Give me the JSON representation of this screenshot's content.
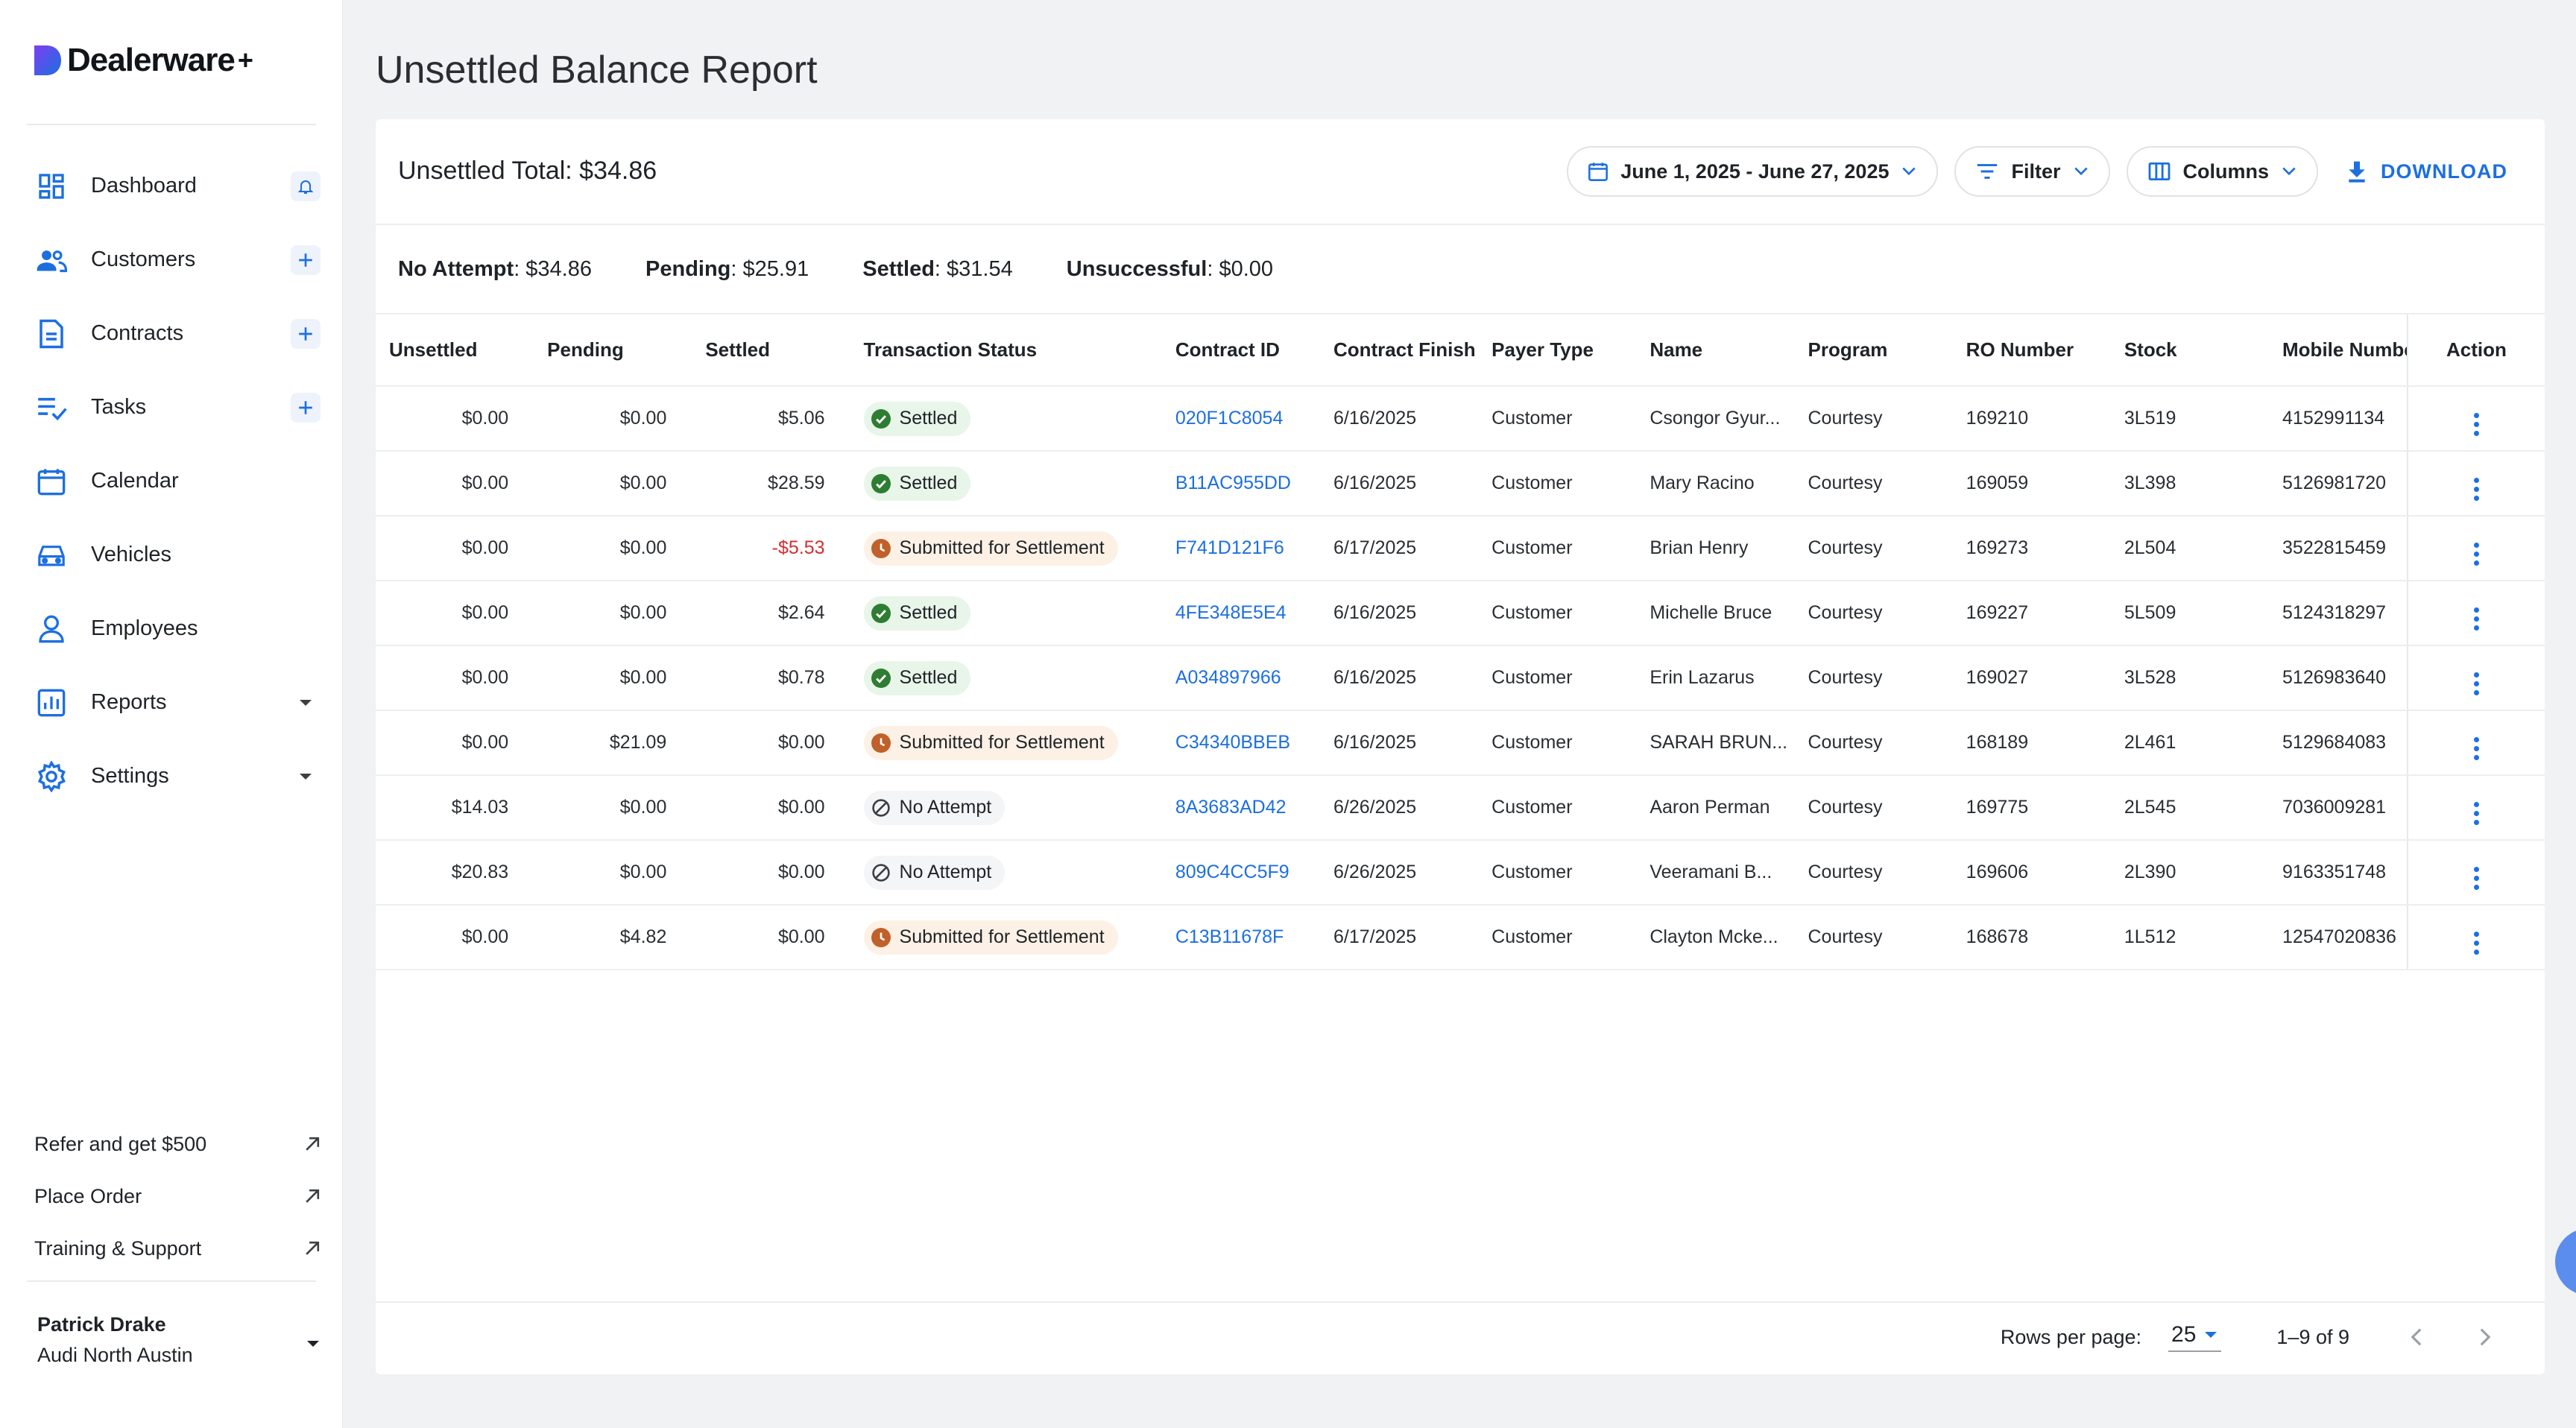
{
  "brand": {
    "name": "Dealerware",
    "plus": "+"
  },
  "sidebar": {
    "items": [
      {
        "label": "Dashboard",
        "icon": "dashboard-icon",
        "trail": "bell"
      },
      {
        "label": "Customers",
        "icon": "customers-icon",
        "trail": "plus"
      },
      {
        "label": "Contracts",
        "icon": "contracts-icon",
        "trail": "plus"
      },
      {
        "label": "Tasks",
        "icon": "tasks-icon",
        "trail": "plus"
      },
      {
        "label": "Calendar",
        "icon": "calendar-icon",
        "trail": ""
      },
      {
        "label": "Vehicles",
        "icon": "vehicle-icon",
        "trail": ""
      },
      {
        "label": "Employees",
        "icon": "employee-icon",
        "trail": ""
      },
      {
        "label": "Reports",
        "icon": "reports-icon",
        "trail": "caret"
      },
      {
        "label": "Settings",
        "icon": "settings-icon",
        "trail": "caret"
      }
    ],
    "links": [
      {
        "label": "Refer and get $500"
      },
      {
        "label": "Place Order"
      },
      {
        "label": "Training & Support"
      }
    ],
    "user": {
      "name": "Patrick Drake",
      "org": "Audi North Austin"
    }
  },
  "page": {
    "title": "Unsettled Balance Report"
  },
  "header": {
    "total": "Unsettled Total: $34.86",
    "date_range": "June 1, 2025 - June 27, 2025",
    "filter": "Filter",
    "columns": "Columns",
    "download": "DOWNLOAD"
  },
  "summary": {
    "no_attempt_label": "No Attempt",
    "no_attempt_value": ": $34.86",
    "pending_label": "Pending",
    "pending_value": ": $25.91",
    "settled_label": "Settled",
    "settled_value": ": $31.54",
    "unsuccessful_label": "Unsuccessful",
    "unsuccessful_value": ": $0.00"
  },
  "table": {
    "headers": [
      "Unsettled",
      "Pending",
      "Settled",
      "Transaction Status",
      "Contract ID",
      "Contract Finish",
      "Payer Type",
      "Name",
      "Program",
      "RO Number",
      "Stock",
      "Mobile Number",
      "Action"
    ],
    "rows": [
      {
        "unsettled": "$0.00",
        "pending": "$0.00",
        "settled": "$5.06",
        "status": "Settled",
        "contract_id": "020F1C8054",
        "finish": "6/16/2025",
        "payer": "Customer",
        "name": "Csongor Gyur...",
        "program": "Courtesy",
        "ro": "169210",
        "stock": "3L519",
        "mobile": "4152991134"
      },
      {
        "unsettled": "$0.00",
        "pending": "$0.00",
        "settled": "$28.59",
        "status": "Settled",
        "contract_id": "B11AC955DD",
        "finish": "6/16/2025",
        "payer": "Customer",
        "name": "Mary Racino",
        "program": "Courtesy",
        "ro": "169059",
        "stock": "3L398",
        "mobile": "5126981720"
      },
      {
        "unsettled": "$0.00",
        "pending": "$0.00",
        "settled": "-$5.53",
        "status": "Submitted for Settlement",
        "contract_id": "F741D121F6",
        "finish": "6/17/2025",
        "payer": "Customer",
        "name": "Brian Henry",
        "program": "Courtesy",
        "ro": "169273",
        "stock": "2L504",
        "mobile": "3522815459"
      },
      {
        "unsettled": "$0.00",
        "pending": "$0.00",
        "settled": "$2.64",
        "status": "Settled",
        "contract_id": "4FE348E5E4",
        "finish": "6/16/2025",
        "payer": "Customer",
        "name": "Michelle Bruce",
        "program": "Courtesy",
        "ro": "169227",
        "stock": "5L509",
        "mobile": "5124318297"
      },
      {
        "unsettled": "$0.00",
        "pending": "$0.00",
        "settled": "$0.78",
        "status": "Settled",
        "contract_id": "A034897966",
        "finish": "6/16/2025",
        "payer": "Customer",
        "name": "Erin Lazarus",
        "program": "Courtesy",
        "ro": "169027",
        "stock": "3L528",
        "mobile": "5126983640"
      },
      {
        "unsettled": "$0.00",
        "pending": "$21.09",
        "settled": "$0.00",
        "status": "Submitted for Settlement",
        "contract_id": "C34340BBEB",
        "finish": "6/16/2025",
        "payer": "Customer",
        "name": "SARAH BRUN...",
        "program": "Courtesy",
        "ro": "168189",
        "stock": "2L461",
        "mobile": "5129684083"
      },
      {
        "unsettled": "$14.03",
        "pending": "$0.00",
        "settled": "$0.00",
        "status": "No Attempt",
        "contract_id": "8A3683AD42",
        "finish": "6/26/2025",
        "payer": "Customer",
        "name": "Aaron Perman",
        "program": "Courtesy",
        "ro": "169775",
        "stock": "2L545",
        "mobile": "7036009281"
      },
      {
        "unsettled": "$20.83",
        "pending": "$0.00",
        "settled": "$0.00",
        "status": "No Attempt",
        "contract_id": "809C4CC5F9",
        "finish": "6/26/2025",
        "payer": "Customer",
        "name": "Veeramani B...",
        "program": "Courtesy",
        "ro": "169606",
        "stock": "2L390",
        "mobile": "9163351748"
      },
      {
        "unsettled": "$0.00",
        "pending": "$4.82",
        "settled": "$0.00",
        "status": "Submitted for Settlement",
        "contract_id": "C13B11678F",
        "finish": "6/17/2025",
        "payer": "Customer",
        "name": "Clayton Mcke...",
        "program": "Courtesy",
        "ro": "168678",
        "stock": "1L512",
        "mobile": "12547020836"
      }
    ]
  },
  "footer": {
    "rows_per_page_label": "Rows per page:",
    "rows_per_page": "25",
    "range": "1–9 of 9"
  },
  "colors": {
    "accent": "#1d6fe0",
    "settled": "#2e7d32",
    "submitted": "#c0602a",
    "negative": "#d32f2f"
  }
}
